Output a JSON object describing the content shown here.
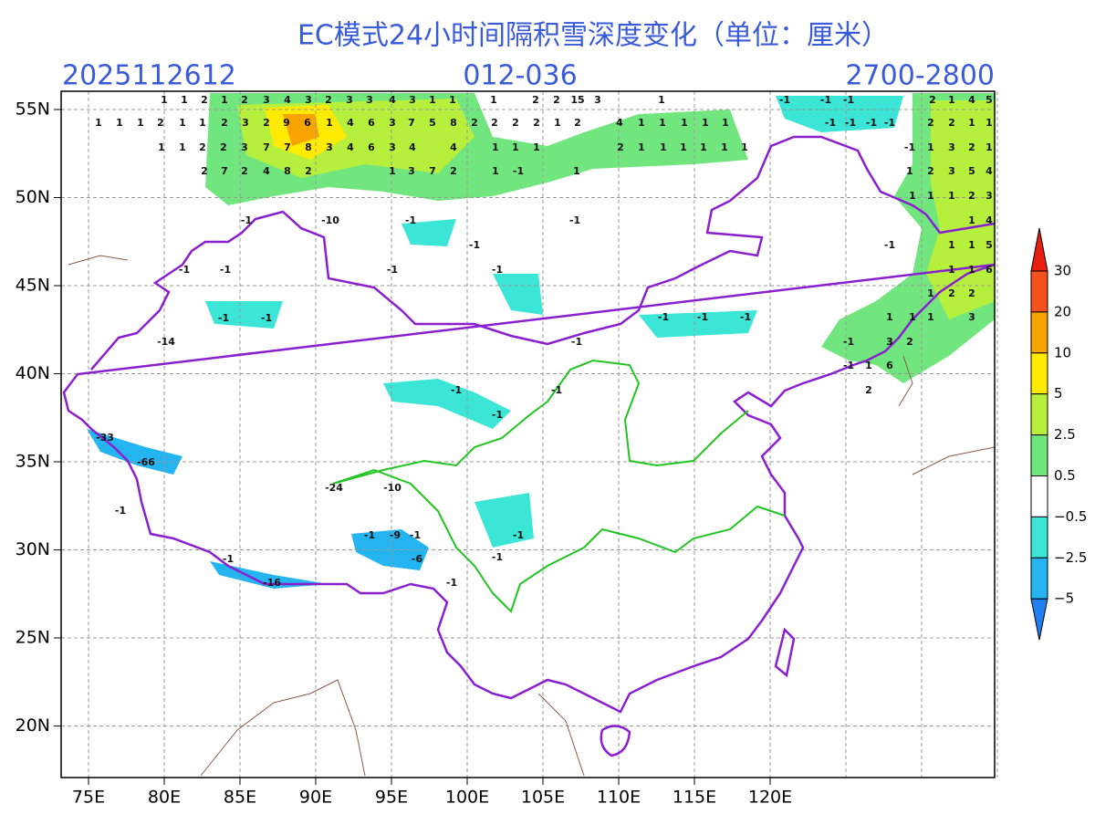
{
  "header": {
    "title": "EC模式24小时间隔积雪深度变化（单位：厘米）",
    "init_time": "2025112612",
    "forecast_hours": "012-036",
    "period": "2700-2800"
  },
  "axes": {
    "lat_labels": [
      "55N",
      "50N",
      "45N",
      "40N",
      "35N",
      "30N",
      "25N",
      "20N"
    ],
    "lon_labels": [
      "75E",
      "80E",
      "85E",
      "90E",
      "95E",
      "100E",
      "105E",
      "110E",
      "115E",
      "120E"
    ]
  },
  "colorbar": {
    "labels": [
      "30",
      "20",
      "10",
      "5",
      "2.5",
      "0.5",
      "−0.5",
      "−2.5",
      "−5"
    ]
  },
  "annotations": [
    "1",
    "1",
    "2",
    "1",
    "2",
    "3",
    "4",
    "3",
    "2",
    "3",
    "3",
    "4",
    "3",
    "1",
    "1",
    "1",
    "2",
    "2",
    "15",
    "3",
    "1",
    "1",
    "1",
    "1",
    "2",
    "1",
    "1",
    "2",
    "3",
    "2",
    "9",
    "6",
    "1",
    "4",
    "6",
    "3",
    "7",
    "5",
    "8",
    "2",
    "2",
    "2",
    "2",
    "1",
    "2",
    "4",
    "1",
    "1",
    "1",
    "1",
    "1",
    "1",
    "1",
    "2",
    "2",
    "3",
    "7",
    "7",
    "8",
    "3",
    "4",
    "6",
    "3",
    "4",
    "4",
    "1",
    "1",
    "1",
    "2",
    "1",
    "1",
    "1",
    "1",
    "1",
    "1",
    "2",
    "7",
    "2",
    "4",
    "8",
    "2",
    "1",
    "3",
    "7",
    "2",
    "1",
    "-1",
    "1",
    "-10",
    "-1",
    "-1",
    "-1",
    "-1",
    "-1",
    "-1",
    "-1",
    "-1",
    "-1",
    "-1",
    "-14",
    "-1",
    "-1",
    "-1",
    "-1",
    "-1",
    "-1",
    "-1",
    "-33",
    "-66",
    "-24",
    "-10",
    "-1",
    "-1",
    "-1",
    "-9",
    "-1",
    "-6",
    "-1",
    "-1",
    "-16",
    "-1",
    "-1",
    "-1",
    "-1",
    "2",
    "1",
    "4",
    "5",
    "-1",
    "-1",
    "-1",
    "-1",
    "2",
    "2",
    "1",
    "1",
    "-1",
    "1",
    "3",
    "2",
    "1",
    "1",
    "2",
    "3",
    "5",
    "4",
    "1",
    "1",
    "1",
    "2",
    "3",
    "1",
    "4",
    "-1",
    "1",
    "1",
    "5",
    "1",
    "1",
    "6",
    "1",
    "2",
    "2",
    "1",
    "1",
    "1",
    "3",
    "-1",
    "3",
    "2",
    "-1",
    "1",
    "6",
    "2"
  ]
}
